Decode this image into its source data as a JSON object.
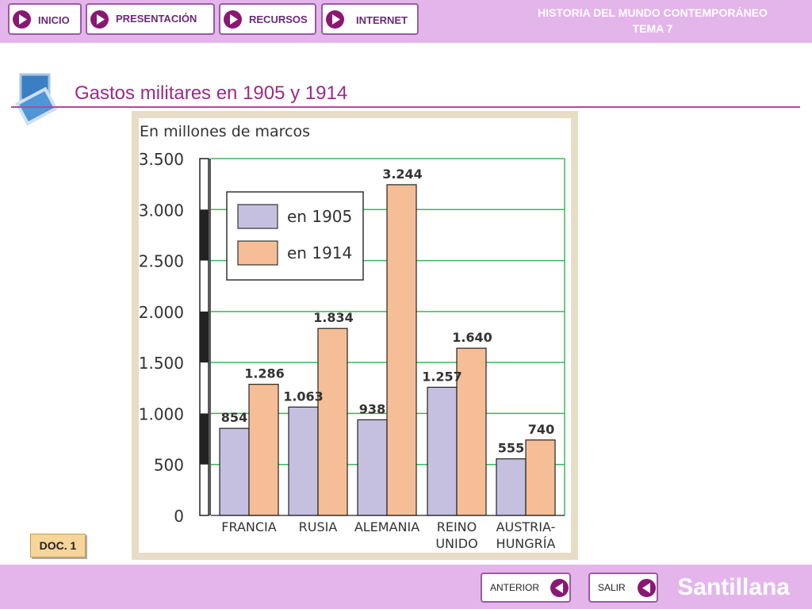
{
  "nav": {
    "items": [
      {
        "label": "INICIO",
        "icon": "play-icon"
      },
      {
        "label": "PRESENTACIÓN",
        "icon": "play-icon"
      },
      {
        "label": "RECURSOS",
        "icon": "play-icon"
      },
      {
        "label": "INTERNET",
        "icon": "play-icon"
      }
    ]
  },
  "course": {
    "line1": "HISTORIA DEL MUNDO CONTEMPORÁNEO",
    "line2": "TEMA 7"
  },
  "page": {
    "title": "Gastos militares en 1905 y 1914",
    "title_icon": "document-stack-icon"
  },
  "doc": {
    "label": "DOC. 1"
  },
  "footer": {
    "prev_label": "ANTERIOR",
    "exit_label": "SALIR",
    "brand": "Santillana",
    "back_icon": "back-arrow-icon"
  },
  "colors": {
    "bar_1905": "#c5c0e0",
    "bar_1914": "#f6be96",
    "grid": "#39b85a",
    "accent": "#9c2a88",
    "bar_background": "#e4b5ea"
  },
  "chart_data": {
    "type": "bar",
    "title": "",
    "ylabel": "En millones de marcos",
    "xlabel": "",
    "categories": [
      "FRANCIA",
      "RUSIA",
      "ALEMANIA",
      "REINO UNIDO",
      "AUSTRIA-HUNGRÍA"
    ],
    "category_lines": [
      [
        "FRANCIA"
      ],
      [
        "RUSIA"
      ],
      [
        "ALEMANIA"
      ],
      [
        "REINO",
        "UNIDO"
      ],
      [
        "AUSTRIA-",
        "HUNGRÍA"
      ]
    ],
    "series": [
      {
        "name": "en 1905",
        "values": [
          854,
          1063,
          938,
          1257,
          555
        ],
        "labels": [
          "854",
          "1.063",
          "938",
          "1.257",
          "555"
        ]
      },
      {
        "name": "en 1914",
        "values": [
          1286,
          1834,
          3244,
          1640,
          740
        ],
        "labels": [
          "1.286",
          "1.834",
          "3.244",
          "1.640",
          "740"
        ]
      }
    ],
    "ylim": [
      0,
      3500
    ],
    "yticks": [
      0,
      500,
      1000,
      1500,
      2000,
      2500,
      3000,
      3500
    ],
    "ytick_labels": [
      "0",
      "500",
      "1.000",
      "1.500",
      "2.000",
      "2.500",
      "3.000",
      "3.500"
    ],
    "grid": true,
    "legend": "upper-left"
  }
}
